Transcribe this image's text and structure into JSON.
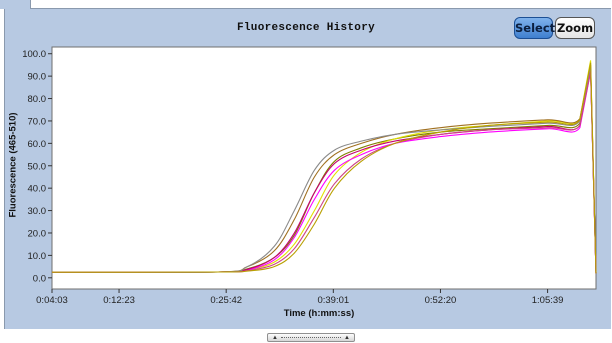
{
  "window": {
    "title": "Fluorescence History",
    "buttons": {
      "select": "Select",
      "zoom": "Zoom"
    }
  },
  "chart_data": {
    "type": "line",
    "title": "Fluorescence History",
    "xlabel": "Time (h:mm:ss)",
    "ylabel": "Fluorescence (465-510)",
    "x_units": "seconds",
    "x_tick_labels": [
      "0:04:03",
      "0:12:23",
      "0:25:42",
      "0:39:01",
      "0:52:20",
      "1:05:39"
    ],
    "x_tick_values": [
      243,
      743,
      1542,
      2341,
      3140,
      3939
    ],
    "xlim": [
      243,
      4300
    ],
    "y_tick_labels": [
      "0.0",
      "10.0",
      "20.0",
      "30.0",
      "40.0",
      "50.0",
      "60.0",
      "70.0",
      "80.0",
      "90.0",
      "100.0"
    ],
    "ylim": [
      -5,
      103
    ],
    "grid": false,
    "legend": "none",
    "series": [
      {
        "color": "#808000",
        "values": [
          [
            243,
            2.5
          ],
          [
            1480,
            2.6
          ],
          [
            1700,
            4
          ],
          [
            1900,
            9
          ],
          [
            2050,
            19
          ],
          [
            2200,
            38
          ],
          [
            2350,
            52
          ],
          [
            2550,
            58
          ],
          [
            2800,
            62
          ],
          [
            3140,
            65
          ],
          [
            3500,
            66.5
          ],
          [
            3939,
            68
          ],
          [
            4180,
            69
          ],
          [
            4260,
            93
          ],
          [
            4300,
            2
          ]
        ]
      },
      {
        "color": "#e0e000",
        "values": [
          [
            243,
            2.5
          ],
          [
            1480,
            2.6
          ],
          [
            1700,
            3.5
          ],
          [
            1900,
            7
          ],
          [
            2050,
            15
          ],
          [
            2200,
            30
          ],
          [
            2350,
            46
          ],
          [
            2550,
            56
          ],
          [
            2800,
            62
          ],
          [
            3140,
            66
          ],
          [
            3500,
            68
          ],
          [
            3939,
            70
          ],
          [
            4180,
            71
          ],
          [
            4260,
            97
          ],
          [
            4300,
            2
          ]
        ]
      },
      {
        "color": "#ff00ff",
        "values": [
          [
            243,
            2.5
          ],
          [
            1480,
            2.6
          ],
          [
            1700,
            3.5
          ],
          [
            1900,
            8
          ],
          [
            2050,
            18
          ],
          [
            2200,
            35
          ],
          [
            2350,
            48
          ],
          [
            2550,
            55
          ],
          [
            2800,
            60
          ],
          [
            3140,
            63
          ],
          [
            3500,
            65
          ],
          [
            3939,
            66.5
          ],
          [
            4180,
            67
          ],
          [
            4260,
            92
          ],
          [
            4300,
            2
          ]
        ]
      },
      {
        "color": "#c40070",
        "values": [
          [
            243,
            2.5
          ],
          [
            1480,
            2.6
          ],
          [
            1700,
            3.8
          ],
          [
            1900,
            9
          ],
          [
            2050,
            20
          ],
          [
            2200,
            38
          ],
          [
            2350,
            51
          ],
          [
            2550,
            57
          ],
          [
            2800,
            61
          ],
          [
            3140,
            64
          ],
          [
            3500,
            66
          ],
          [
            3939,
            67.5
          ],
          [
            4180,
            68
          ],
          [
            4260,
            93
          ],
          [
            4300,
            2
          ]
        ]
      },
      {
        "color": "#a07020",
        "values": [
          [
            243,
            2.5
          ],
          [
            1480,
            2.6
          ],
          [
            1700,
            5
          ],
          [
            1900,
            12
          ],
          [
            2050,
            26
          ],
          [
            2200,
            45
          ],
          [
            2350,
            55
          ],
          [
            2550,
            60
          ],
          [
            2800,
            64
          ],
          [
            3140,
            67
          ],
          [
            3500,
            69
          ],
          [
            3939,
            70.5
          ],
          [
            4180,
            71
          ],
          [
            4260,
            95
          ],
          [
            4300,
            2
          ]
        ]
      },
      {
        "color": "#8a8a8a",
        "values": [
          [
            243,
            2.5
          ],
          [
            1480,
            2.6
          ],
          [
            1700,
            5
          ],
          [
            1900,
            14
          ],
          [
            2050,
            30
          ],
          [
            2200,
            48
          ],
          [
            2350,
            57
          ],
          [
            2550,
            61
          ],
          [
            2800,
            64
          ],
          [
            3140,
            66
          ],
          [
            3500,
            67.5
          ],
          [
            3939,
            69
          ],
          [
            4180,
            70
          ],
          [
            4260,
            94
          ],
          [
            4300,
            2
          ]
        ]
      },
      {
        "color": "#cc4488",
        "values": [
          [
            243,
            2.5
          ],
          [
            1480,
            2.6
          ],
          [
            1700,
            3.2
          ],
          [
            1900,
            6
          ],
          [
            2050,
            13
          ],
          [
            2200,
            27
          ],
          [
            2350,
            42
          ],
          [
            2550,
            53
          ],
          [
            2800,
            60
          ],
          [
            3140,
            64
          ],
          [
            3500,
            66
          ],
          [
            3939,
            67
          ],
          [
            4180,
            68
          ],
          [
            4260,
            92
          ],
          [
            4300,
            2
          ]
        ]
      },
      {
        "color": "#b8a000",
        "values": [
          [
            243,
            2.5
          ],
          [
            1480,
            2.6
          ],
          [
            1700,
            3
          ],
          [
            1900,
            5
          ],
          [
            2050,
            11
          ],
          [
            2200,
            24
          ],
          [
            2350,
            40
          ],
          [
            2550,
            52
          ],
          [
            2800,
            60
          ],
          [
            3140,
            65
          ],
          [
            3500,
            68
          ],
          [
            3939,
            69.5
          ],
          [
            4180,
            70.5
          ],
          [
            4260,
            96
          ],
          [
            4300,
            2
          ]
        ]
      }
    ]
  }
}
